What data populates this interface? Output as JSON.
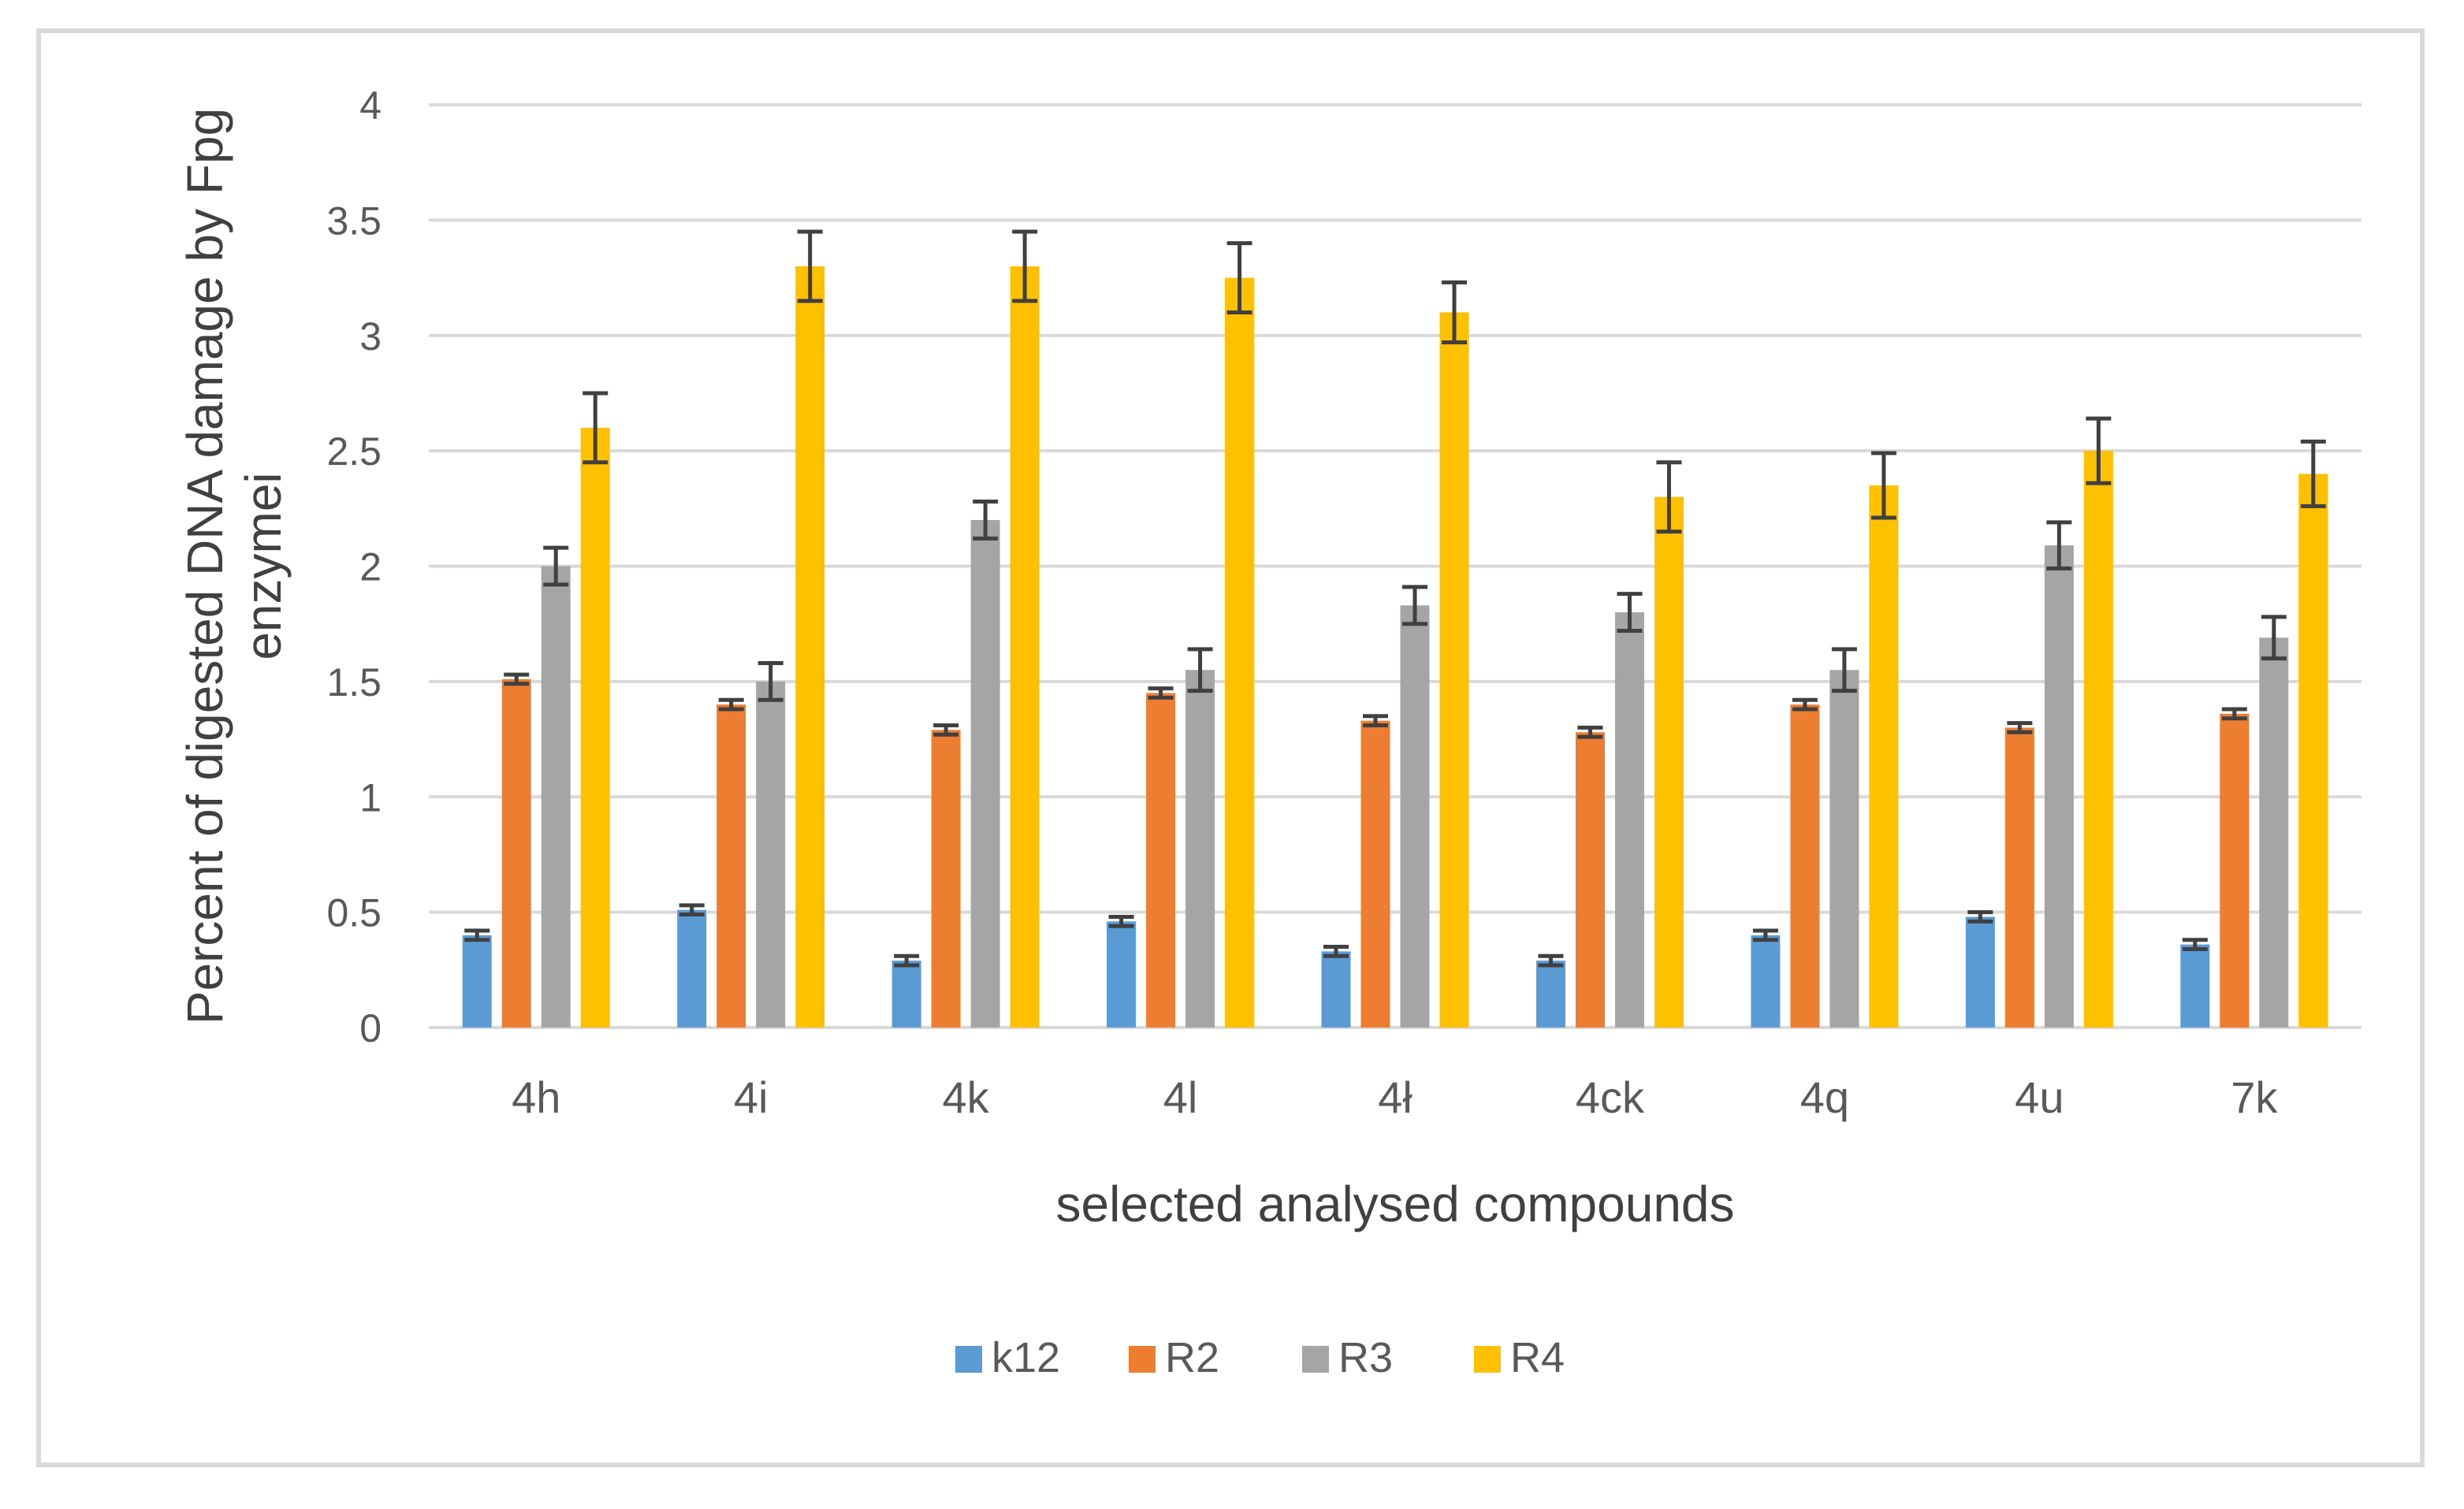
{
  "chart_data": {
    "type": "bar",
    "title": "",
    "xlabel": "selected analysed compounds",
    "ylabel_lines": [
      "Percent of digested DNA damage by Fpg",
      "enzymei"
    ],
    "ylim": [
      0,
      4
    ],
    "yticks": [
      0,
      0.5,
      1,
      1.5,
      2,
      2.5,
      3,
      3.5,
      4
    ],
    "ytick_labels": [
      "0",
      "0.5",
      "1",
      "1.5",
      "2",
      "2.5",
      "3",
      "3.5",
      "4"
    ],
    "grid": true,
    "legend_position": "bottom",
    "categories": [
      "4h",
      "4i",
      "4k",
      "4l",
      "4ł",
      "4ck",
      "4q",
      "4u",
      "7k"
    ],
    "series": [
      {
        "name": "k12",
        "color": "#5b9bd5",
        "values": [
          0.4,
          0.51,
          0.29,
          0.46,
          0.33,
          0.29,
          0.4,
          0.48,
          0.36
        ],
        "errors": [
          0.02,
          0.02,
          0.02,
          0.02,
          0.02,
          0.02,
          0.02,
          0.02,
          0.02
        ]
      },
      {
        "name": "R2",
        "color": "#ed7d31",
        "values": [
          1.51,
          1.4,
          1.29,
          1.45,
          1.33,
          1.28,
          1.4,
          1.3,
          1.36
        ],
        "errors": [
          0.02,
          0.02,
          0.02,
          0.02,
          0.02,
          0.02,
          0.02,
          0.02,
          0.02
        ]
      },
      {
        "name": "R3",
        "color": "#a5a5a5",
        "values": [
          2.0,
          1.5,
          2.2,
          1.55,
          1.83,
          1.8,
          1.55,
          2.09,
          1.69
        ],
        "errors": [
          0.08,
          0.08,
          0.08,
          0.09,
          0.08,
          0.08,
          0.09,
          0.1,
          0.09
        ]
      },
      {
        "name": "R4",
        "color": "#ffc000",
        "values": [
          2.6,
          3.3,
          3.3,
          3.25,
          3.1,
          2.3,
          2.35,
          2.5,
          2.4
        ],
        "errors": [
          0.15,
          0.15,
          0.15,
          0.15,
          0.13,
          0.15,
          0.14,
          0.14,
          0.14
        ]
      }
    ]
  }
}
